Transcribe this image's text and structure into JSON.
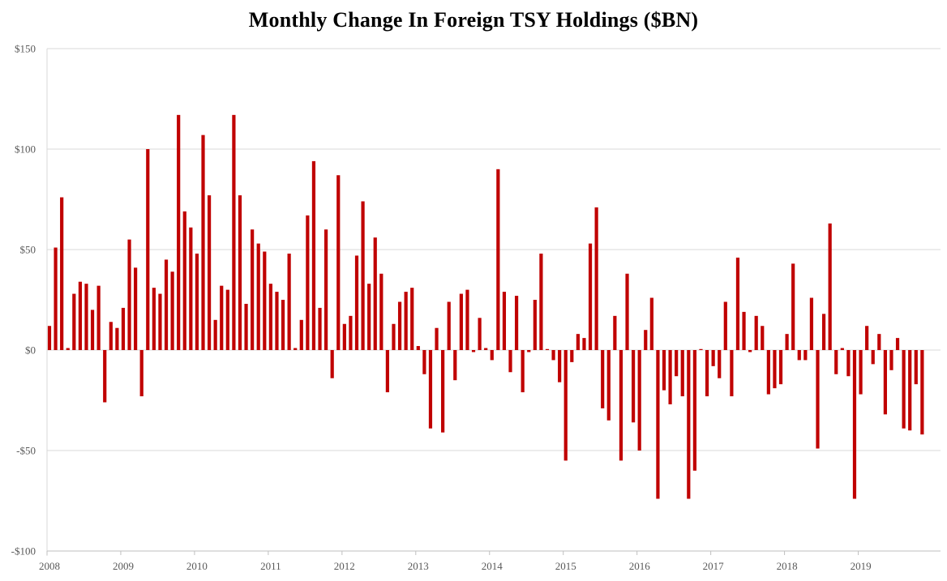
{
  "chart_data": {
    "type": "bar",
    "title": "Monthly Change In Foreign TSY Holdings  ($BN)",
    "xlabel": "",
    "ylabel": "",
    "ylim": [
      -100,
      150
    ],
    "ytick_values": [
      -100,
      -50,
      0,
      50,
      100,
      150
    ],
    "ytick_labels": [
      "-$100",
      "-$50",
      "$0",
      "$50",
      "$100",
      "$150"
    ],
    "xtick_labels": [
      "2008",
      "2009",
      "2010",
      "2011",
      "2012",
      "2013",
      "2014",
      "2015",
      "2016",
      "2017",
      "2018",
      "2019"
    ],
    "start": "2008-01",
    "frequency": "monthly",
    "bar_color": "#c00000",
    "grid": true,
    "legend": "none",
    "series": [
      {
        "name": "Monthly Change In Foreign TSY Holdings",
        "values": [
          12,
          51,
          76,
          1,
          28,
          34,
          33,
          20,
          32,
          -26,
          14,
          11,
          21,
          55,
          41,
          -23,
          100,
          31,
          28,
          45,
          39,
          117,
          69,
          61,
          48,
          107,
          77,
          15,
          32,
          30,
          117,
          77,
          23,
          60,
          53,
          49,
          33,
          29,
          25,
          48,
          1,
          15,
          67,
          94,
          21,
          60,
          -14,
          87,
          13,
          17,
          47,
          74,
          33,
          56,
          38,
          -21,
          13,
          24,
          29,
          31,
          2,
          -12,
          -39,
          11,
          -41,
          24,
          -15,
          28,
          30,
          -1,
          16,
          1,
          -5,
          90,
          29,
          -11,
          27,
          -21,
          -1,
          25,
          48,
          0.5,
          -5,
          -16,
          -55,
          -6,
          8,
          6,
          53,
          71,
          -29,
          -35,
          17,
          -55,
          38,
          -36,
          -50,
          10,
          26,
          -74,
          -20,
          -27,
          -13,
          -23,
          -74,
          -60,
          0.5,
          -23,
          -8,
          -14,
          24,
          -23,
          46,
          19,
          -1,
          17,
          12,
          -22,
          -19,
          -17,
          8,
          43,
          -5,
          -5,
          26,
          -49,
          18,
          63,
          -12,
          1,
          -13,
          -74,
          -22,
          12,
          -7,
          8,
          -32,
          -10,
          6,
          -39,
          -40,
          -17,
          -42
        ]
      }
    ]
  }
}
